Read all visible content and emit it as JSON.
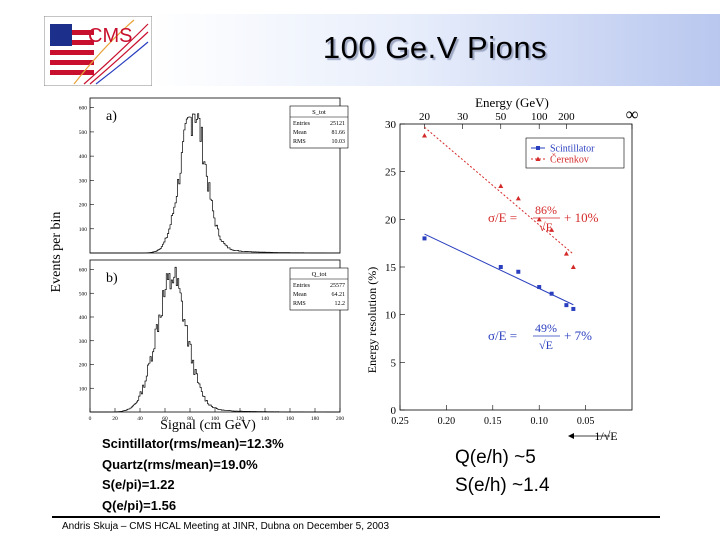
{
  "title": "100 Ge.V Pions",
  "logo_text": "CMS",
  "footer": "Andris Skuja – CMS HCAL Meeting at JINR, Dubna on December 5, 2003",
  "notes": [
    "Scintillator(rms/mean)=12.3%",
    "Quartz(rms/mean)=19.0%",
    "S(e/pi)=1.22",
    "Q(e/pi)=1.56"
  ],
  "ratios": [
    "Q(e/h) ~5",
    "S(e/h) ~1.4"
  ],
  "colors": {
    "scintillator": "#2a3fbf",
    "cerenkov": "#d42a2a",
    "title_band": "#b9c7ef"
  },
  "chart_data": [
    {
      "type": "bar",
      "panel": "a)",
      "ylabel": "Events per bin",
      "xlabel": "Signal (cm GeV)",
      "yticks": [
        600,
        500,
        400,
        300,
        200,
        100
      ],
      "stats": {
        "name": "S_tot",
        "rows": [
          [
            "Entries",
            "25121"
          ],
          [
            "Mean",
            "81.66"
          ],
          [
            "RMS",
            "10.03"
          ]
        ]
      },
      "mean": 81.66,
      "rms": 10.03,
      "peak": 560
    },
    {
      "type": "bar",
      "panel": "b)",
      "xlabel": "Signal (cm GeV)",
      "yticks": [
        600,
        500,
        400,
        300,
        200,
        100
      ],
      "xticks": [
        0,
        20,
        40,
        60,
        80,
        100,
        120,
        140,
        160,
        180,
        200
      ],
      "stats": {
        "name": "Q_tot",
        "rows": [
          [
            "Entries",
            "25577"
          ],
          [
            "Mean",
            "64.21"
          ],
          [
            "RMS",
            "12.2"
          ]
        ]
      },
      "mean": 64.21,
      "rms": 12.2,
      "peak": 540
    },
    {
      "type": "line",
      "xlabel": "1/√E",
      "top_xlabel": "Energy (GeV)",
      "ylabel": "Energy resolution (%)",
      "xlim": [
        0.25,
        0
      ],
      "ylim": [
        0,
        30
      ],
      "xticks": [
        "0.25",
        "0.20",
        "0.15",
        "0.10",
        "0.05"
      ],
      "yticks": [
        0,
        5,
        10,
        15,
        20,
        25,
        30
      ],
      "top_ticks": [
        "20",
        "30",
        "50",
        "100",
        "200",
        "∞"
      ],
      "series": [
        {
          "name": "Scintillator",
          "x": [
            0.2236,
            0.1414,
            0.1225,
            0.1,
            0.0866,
            0.0707,
            0.0632
          ],
          "y": [
            18.0,
            15.0,
            14.5,
            12.9,
            12.2,
            11.0,
            10.6
          ],
          "formula_num": "49%",
          "formula_const": "+ 7%"
        },
        {
          "name": "Čerenkov",
          "x": [
            0.2236,
            0.1414,
            0.1225,
            0.1,
            0.0866,
            0.0707,
            0.0632
          ],
          "y": [
            28.8,
            23.5,
            22.2,
            20.0,
            18.9,
            16.4,
            15.0
          ],
          "formula_num": "86%",
          "formula_const": "+ 10%"
        }
      ],
      "formula_prefix": "σ/E =",
      "formula_den": "√E"
    }
  ]
}
